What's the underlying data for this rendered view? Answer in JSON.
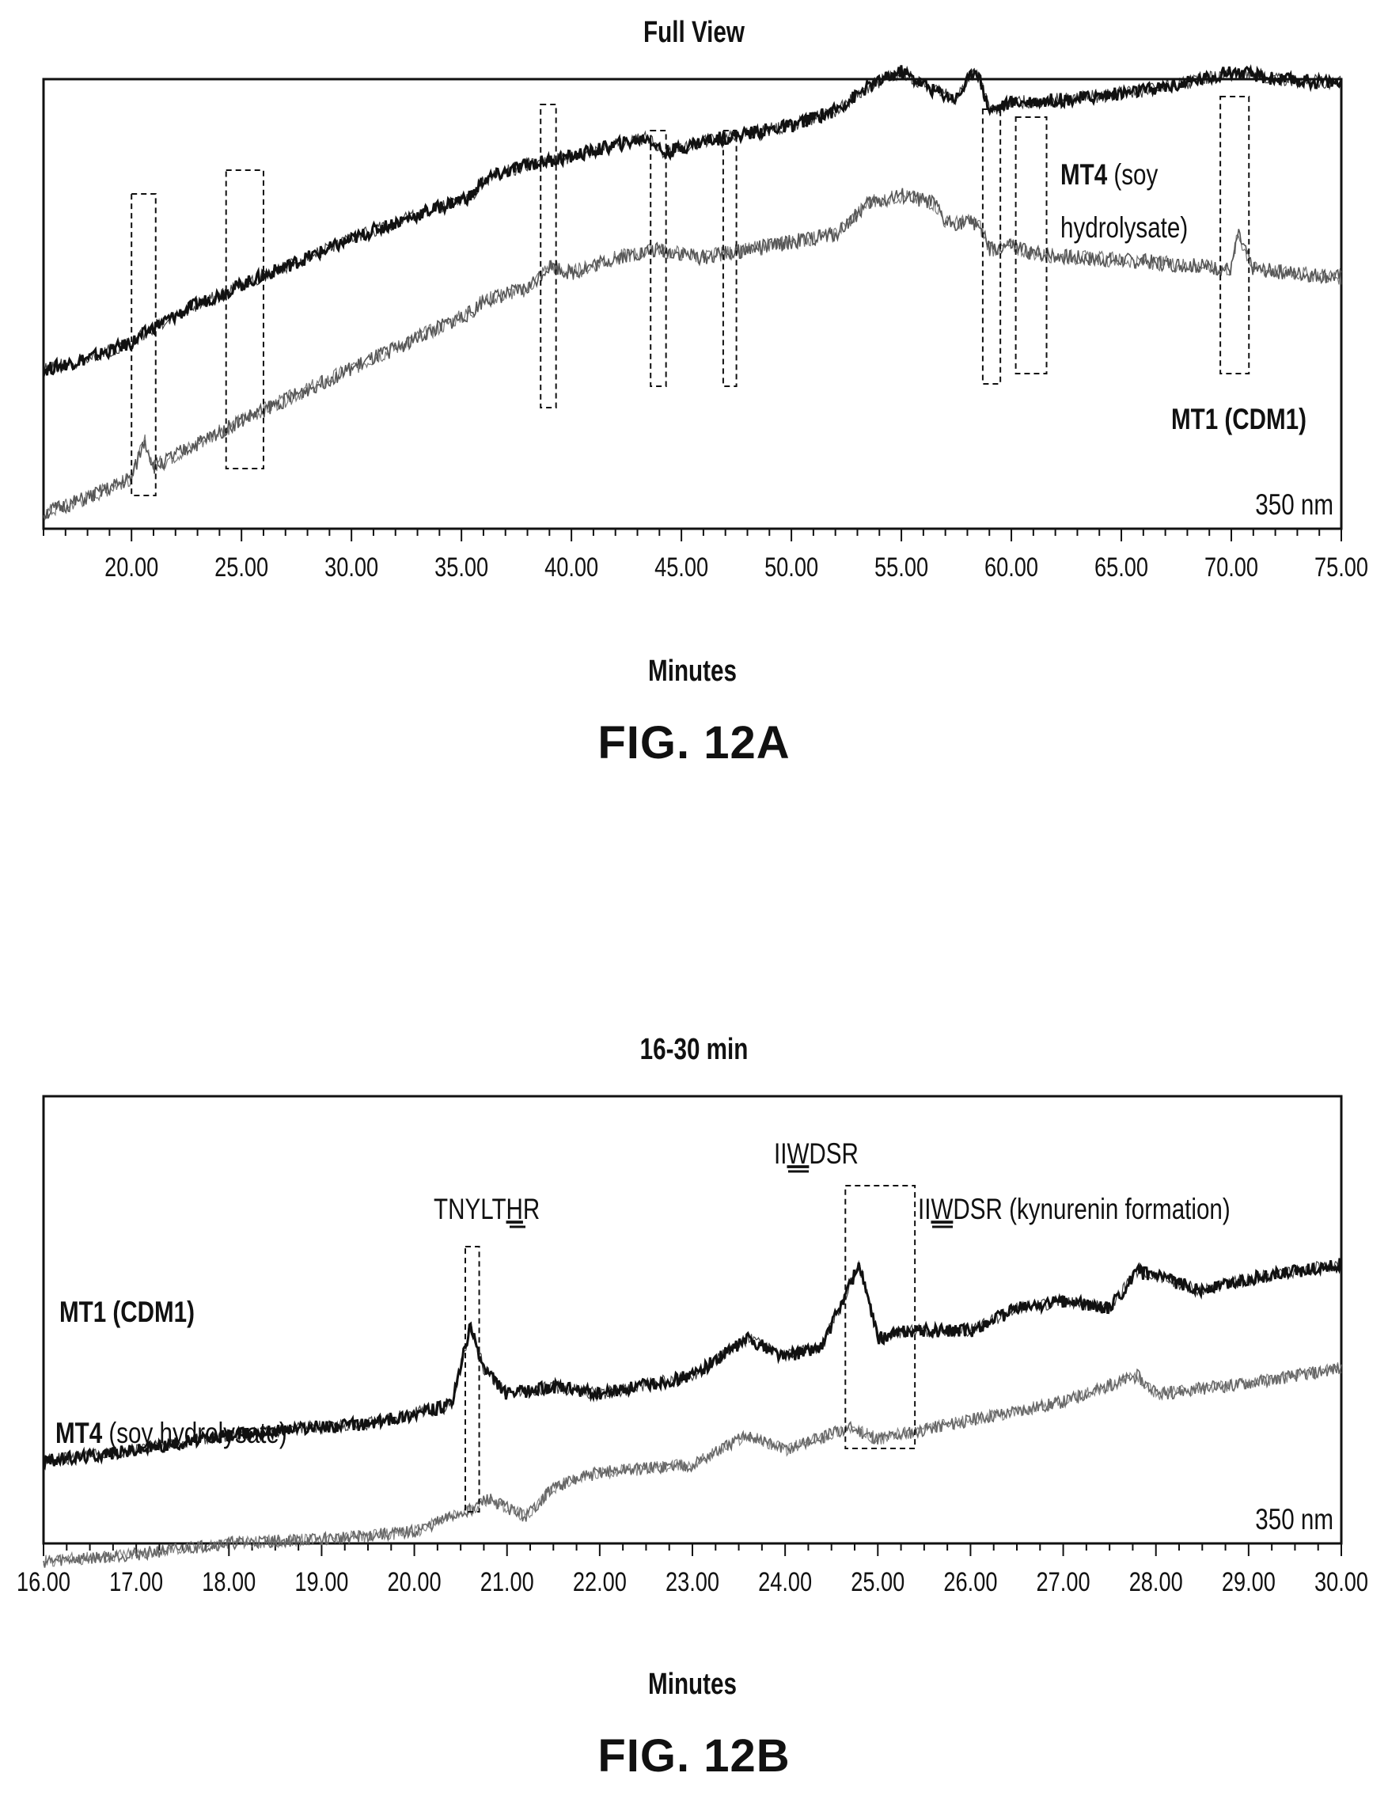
{
  "figures": [
    {
      "label": "FIG. 12A"
    },
    {
      "label": "FIG. 12B"
    }
  ],
  "chart_data": [
    {
      "type": "line",
      "title": "Full View",
      "xlabel": "Minutes",
      "ylabel": "",
      "xlim": [
        16,
        75
      ],
      "x_ticks": [
        "20.00",
        "25.00",
        "30.00",
        "35.00",
        "40.00",
        "45.00",
        "50.00",
        "55.00",
        "60.00",
        "65.00",
        "70.00",
        "75.00"
      ],
      "wavelength_label": "350 nm",
      "series": [
        {
          "name_bold": "MT4",
          "name_rest": " (soy",
          "name_rest2": "hydrolysate)",
          "color": "#111111",
          "x": [
            16,
            18,
            20,
            21,
            23,
            25,
            28,
            31,
            34,
            35.5,
            36,
            38,
            40,
            42,
            43.5,
            44.2,
            46,
            48,
            50,
            52,
            53.5,
            55,
            56.5,
            57.5,
            58.4,
            59,
            60,
            63,
            66,
            68,
            70,
            72,
            75
          ],
          "y": [
            0.45,
            0.48,
            0.52,
            0.56,
            0.62,
            0.67,
            0.74,
            0.81,
            0.87,
            0.9,
            0.94,
            0.98,
            1.0,
            1.03,
            1.05,
            1.01,
            1.04,
            1.06,
            1.08,
            1.12,
            1.18,
            1.22,
            1.17,
            1.15,
            1.23,
            1.12,
            1.14,
            1.15,
            1.17,
            1.19,
            1.22,
            1.2,
            1.19
          ]
        },
        {
          "name_bold": "MT1 (CDM1)",
          "color": "#555555",
          "x": [
            16,
            18,
            20,
            20.6,
            21,
            23,
            25,
            28,
            31,
            34,
            35.5,
            36,
            38,
            39,
            40,
            42,
            44,
            46,
            48,
            50,
            52,
            53.5,
            55,
            56.5,
            57,
            58.5,
            59,
            60,
            61,
            63,
            66,
            68,
            70,
            70.3,
            71,
            75
          ],
          "y": [
            0.08,
            0.12,
            0.17,
            0.27,
            0.2,
            0.26,
            0.32,
            0.4,
            0.48,
            0.56,
            0.6,
            0.63,
            0.66,
            0.72,
            0.7,
            0.74,
            0.76,
            0.74,
            0.76,
            0.78,
            0.8,
            0.88,
            0.9,
            0.88,
            0.83,
            0.83,
            0.76,
            0.77,
            0.75,
            0.74,
            0.73,
            0.72,
            0.71,
            0.8,
            0.71,
            0.69
          ]
        }
      ],
      "regions": [
        [
          20,
          21.1
        ],
        [
          24.3,
          26
        ],
        [
          38.6,
          39.3
        ],
        [
          43.6,
          44.3
        ],
        [
          46.9,
          47.5
        ],
        [
          58.7,
          59.5
        ],
        [
          60.2,
          61.6
        ],
        [
          69.5,
          70.8
        ]
      ]
    },
    {
      "type": "line",
      "title": "16-30 min",
      "xlabel": "Minutes",
      "ylabel": "",
      "xlim": [
        16,
        30
      ],
      "x_ticks": [
        "16.00",
        "17.00",
        "18.00",
        "19.00",
        "20.00",
        "21.00",
        "22.00",
        "23.00",
        "24.00",
        "25.00",
        "26.00",
        "27.00",
        "28.00",
        "29.00",
        "30.00"
      ],
      "wavelength_label": "350 nm",
      "series": [
        {
          "name_bold": "MT1 (CDM1)",
          "color": "#111111",
          "x": [
            16,
            17,
            18,
            18.8,
            19.5,
            20.4,
            20.6,
            20.75,
            21,
            21.5,
            22,
            23,
            23.6,
            24,
            24.4,
            24.8,
            25,
            25.3,
            26,
            26.5,
            27,
            27.5,
            27.8,
            28.5,
            29,
            30
          ],
          "y": [
            0.37,
            0.4,
            0.44,
            0.46,
            0.47,
            0.52,
            0.73,
            0.62,
            0.55,
            0.57,
            0.55,
            0.6,
            0.7,
            0.65,
            0.68,
            0.9,
            0.7,
            0.72,
            0.72,
            0.78,
            0.8,
            0.78,
            0.88,
            0.83,
            0.86,
            0.9
          ]
        },
        {
          "name_bold": "MT4",
          "name_rest": " (soy hydrolysate)",
          "color": "#666666",
          "x": [
            16,
            17,
            18,
            19,
            20,
            20.6,
            20.8,
            21.2,
            21.5,
            22,
            23,
            23.6,
            24,
            24.7,
            25,
            26,
            27,
            27.8,
            28,
            29,
            30
          ],
          "y": [
            0.1,
            0.12,
            0.15,
            0.16,
            0.18,
            0.24,
            0.27,
            0.22,
            0.3,
            0.34,
            0.36,
            0.44,
            0.4,
            0.46,
            0.43,
            0.48,
            0.53,
            0.6,
            0.55,
            0.58,
            0.62
          ]
        }
      ],
      "regions": [
        [
          20.55,
          20.7
        ],
        [
          24.65,
          25.4
        ]
      ],
      "annotations": {
        "peak1": {
          "pre": "TNYLT",
          "under": "H",
          "post": "R"
        },
        "peak2": {
          "pre": "II",
          "under": "W",
          "post": "DSR"
        },
        "peak3": {
          "pre": "II",
          "under": "W",
          "post": "DSR",
          "rest": " (kynurenin formation)"
        }
      }
    }
  ]
}
